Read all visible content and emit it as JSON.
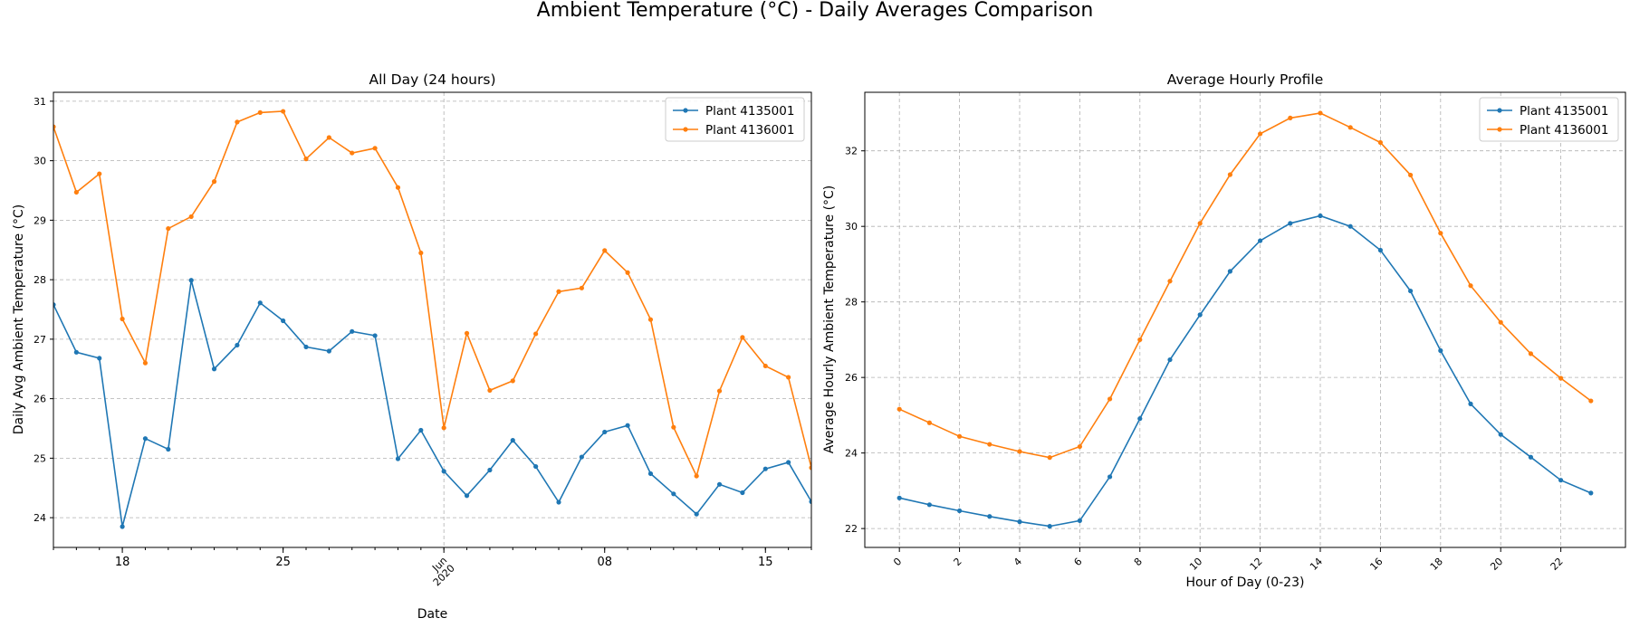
{
  "figure": {
    "suptitle": "Ambient Temperature (°C) - Daily Averages Comparison"
  },
  "chart_data": [
    {
      "type": "line",
      "title": "All Day (24 hours)",
      "xlabel": "Date",
      "ylabel": "Daily Avg Ambient Temperature (°C)",
      "x": [
        "2020-05-15",
        "2020-05-16",
        "2020-05-17",
        "2020-05-18",
        "2020-05-19",
        "2020-05-20",
        "2020-05-21",
        "2020-05-22",
        "2020-05-23",
        "2020-05-24",
        "2020-05-25",
        "2020-05-26",
        "2020-05-27",
        "2020-05-28",
        "2020-05-29",
        "2020-05-30",
        "2020-05-31",
        "2020-06-01",
        "2020-06-02",
        "2020-06-03",
        "2020-06-04",
        "2020-06-05",
        "2020-06-06",
        "2020-06-07",
        "2020-06-08",
        "2020-06-09",
        "2020-06-10",
        "2020-06-11",
        "2020-06-12",
        "2020-06-13",
        "2020-06-14",
        "2020-06-15",
        "2020-06-16",
        "2020-06-17"
      ],
      "xlim": [
        "2020-05-15",
        "2020-06-17"
      ],
      "ylim": [
        23.5,
        31.15
      ],
      "yticks": [
        24,
        25,
        26,
        27,
        28,
        29,
        30,
        31
      ],
      "xticks": [
        {
          "date": "2020-05-18",
          "label": "18",
          "lines": []
        },
        {
          "date": "2020-05-25",
          "label": "25",
          "lines": []
        },
        {
          "date": "2020-06-01",
          "label": "",
          "lines": [
            "Jun",
            "2020"
          ]
        },
        {
          "date": "2020-06-08",
          "label": "08",
          "lines": []
        },
        {
          "date": "2020-06-15",
          "label": "15",
          "lines": []
        }
      ],
      "grid": true,
      "legend_position": "upper right",
      "series": [
        {
          "name": "Plant 4135001",
          "color": "#1f77b4",
          "values": [
            27.58,
            26.78,
            26.68,
            23.85,
            25.33,
            25.15,
            27.99,
            26.5,
            26.9,
            27.61,
            27.31,
            26.87,
            26.8,
            27.13,
            27.06,
            24.99,
            25.47,
            24.78,
            24.37,
            24.8,
            25.3,
            24.86,
            24.26,
            25.02,
            25.44,
            25.55,
            24.74,
            24.4,
            24.06,
            24.56,
            24.42,
            24.82,
            24.93,
            24.27
          ]
        },
        {
          "name": "Plant 4136001",
          "color": "#ff7f0e",
          "values": [
            30.57,
            29.47,
            29.78,
            27.34,
            26.6,
            28.86,
            29.06,
            29.65,
            30.65,
            30.81,
            30.83,
            30.03,
            30.39,
            30.13,
            30.21,
            29.55,
            28.45,
            25.51,
            27.1,
            26.14,
            26.3,
            27.09,
            27.8,
            27.86,
            28.49,
            28.12,
            27.33,
            25.52,
            24.7,
            26.13,
            27.03,
            26.55,
            26.36,
            24.84
          ]
        }
      ]
    },
    {
      "type": "line",
      "title": "Average Hourly Profile",
      "xlabel": "Hour of Day (0-23)",
      "ylabel": "Average Hourly Ambient Temperature (°C)",
      "x": [
        0,
        1,
        2,
        3,
        4,
        5,
        6,
        7,
        8,
        9,
        10,
        11,
        12,
        13,
        14,
        15,
        16,
        17,
        18,
        19,
        20,
        21,
        22,
        23
      ],
      "xlim": [
        -1.15,
        24.15
      ],
      "ylim": [
        21.5,
        33.55
      ],
      "xticks": [
        0,
        2,
        4,
        6,
        8,
        10,
        12,
        14,
        16,
        18,
        20,
        22
      ],
      "yticks": [
        22,
        24,
        26,
        28,
        30,
        32
      ],
      "grid": true,
      "legend_position": "upper right",
      "series": [
        {
          "name": "Plant 4135001",
          "color": "#1f77b4",
          "values": [
            22.81,
            22.63,
            22.47,
            22.32,
            22.18,
            22.06,
            22.21,
            23.37,
            24.91,
            26.47,
            27.66,
            28.81,
            29.62,
            30.08,
            30.28,
            30.0,
            29.37,
            28.29,
            26.71,
            25.3,
            24.49,
            23.89,
            23.28,
            22.94
          ]
        },
        {
          "name": "Plant 4136001",
          "color": "#ff7f0e",
          "values": [
            25.16,
            24.8,
            24.44,
            24.23,
            24.04,
            23.88,
            24.17,
            25.43,
            27.0,
            28.55,
            30.08,
            31.37,
            32.45,
            32.87,
            33.0,
            32.62,
            32.22,
            31.36,
            29.82,
            28.43,
            27.46,
            26.63,
            25.98,
            25.38
          ]
        }
      ]
    }
  ]
}
